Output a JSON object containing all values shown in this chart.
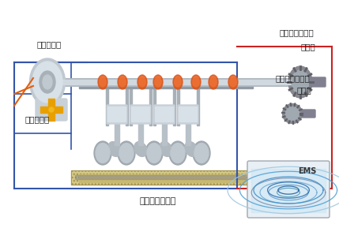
{
  "title": "",
  "bg_color": "#ffffff",
  "labels": {
    "phase_adjuster": "相位調節器",
    "cam_sensor": "凸輪位置傳感器",
    "signal_disc_top": "信號盤",
    "oil_control_valve": "機油控制閥",
    "crank_sensor": "曲軸位置傳感器",
    "signal_disc_bottom": "信號盤",
    "engine_mgmt": "發動機管理系統",
    "ems": "EMS"
  },
  "colors": {
    "border_blue": "#3355aa",
    "border_red": "#cc2222",
    "box_bg": "#e8f4fc",
    "engine_bg": "#f5f0e0",
    "text": "#222222",
    "orange_line": "#e06010",
    "connector_yellow": "#e8a000"
  },
  "fig_width": 4.29,
  "fig_height": 2.89,
  "dpi": 100
}
